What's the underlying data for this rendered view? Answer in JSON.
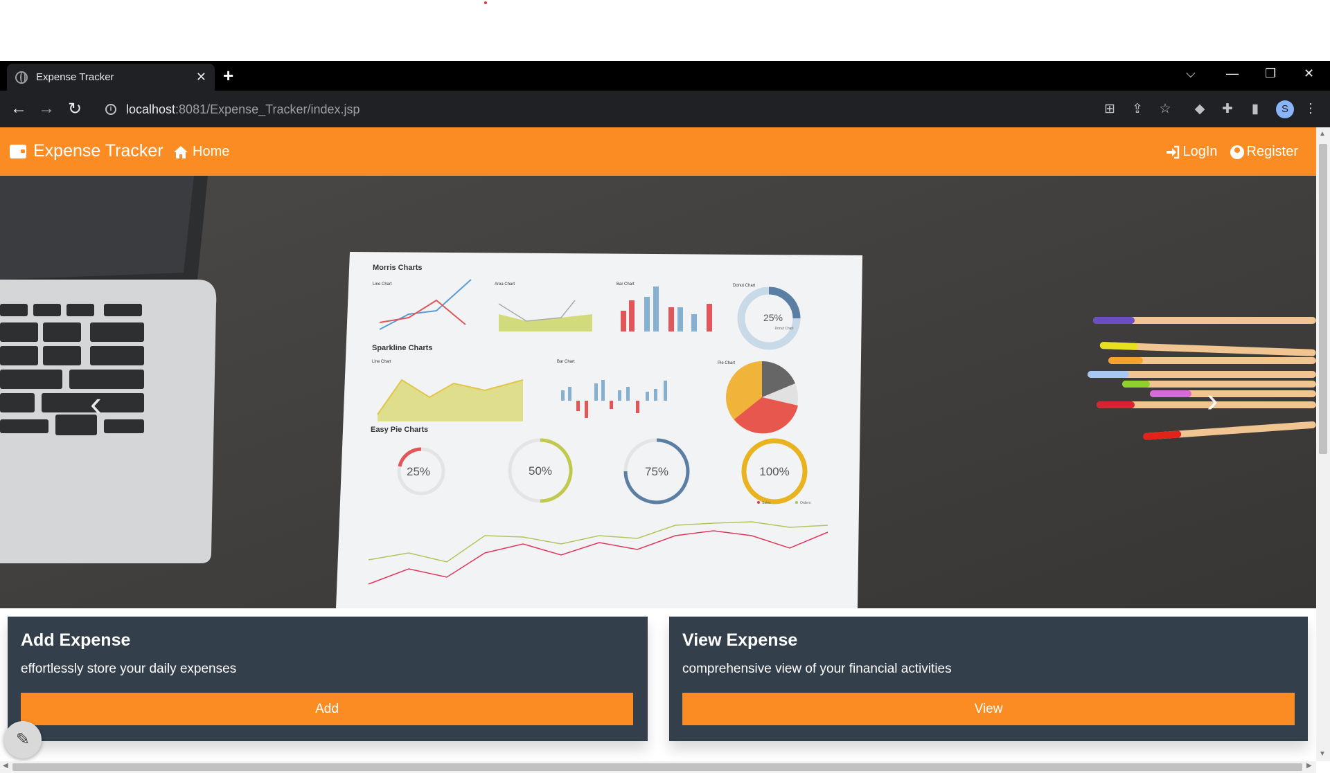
{
  "browser": {
    "tab_title": "Expense Tracker",
    "tab_close": "✕",
    "new_tab": "+",
    "url_host": "localhost",
    "url_rest": ":8081/Expense_Tracker/index.jsp",
    "profile_initial": "S"
  },
  "navbar": {
    "brand": "Expense Tracker",
    "home": "Home",
    "login": "LogIn",
    "register": "Register",
    "background_color": "#fb8c23"
  },
  "hero": {
    "prev_label": "‹",
    "next_label": "›",
    "paper_sections": [
      "Morris Charts",
      "Sparkline Charts",
      "Easy Pie Charts"
    ],
    "paper_chart_titles": [
      "Line Chart",
      "Area Chart",
      "Bar Chart",
      "Donut Chart",
      "Line Chart",
      "Bar Chart",
      "Pie Chart"
    ],
    "donut_value": "25%",
    "donut_label": "Donut Chart",
    "pie_values": [
      "25%",
      "50%",
      "75%",
      "100%"
    ],
    "legend": [
      "Sales",
      "Orders"
    ]
  },
  "cards": [
    {
      "title": "Add Expense",
      "description": "effortlessly store your daily expenses",
      "button": "Add"
    },
    {
      "title": "View Expense",
      "description": "comprehensive view of your financial activities",
      "button": "View"
    }
  ],
  "colors": {
    "accent": "#fb8c23",
    "card_bg": "#343f4c"
  },
  "icons": [
    "wallet-icon",
    "home-icon",
    "login-icon",
    "user-icon",
    "edit-icon"
  ]
}
